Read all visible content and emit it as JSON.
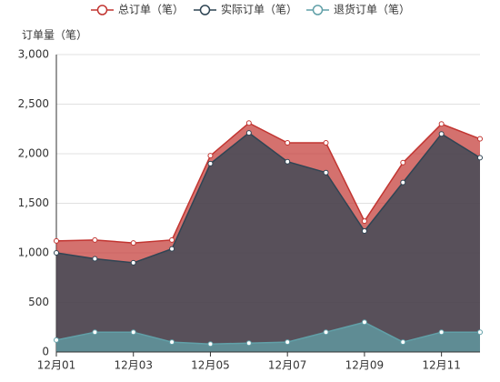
{
  "chart_data": {
    "type": "area",
    "y_axis_label": "订单量（笔）",
    "categories": [
      "12月01",
      null,
      "12月03",
      null,
      "12月05",
      null,
      "12月07",
      null,
      "12月09",
      null,
      "12月11",
      null
    ],
    "series": [
      {
        "name": "总订单（笔）",
        "color": "#c23531",
        "values": [
          1120,
          1130,
          1100,
          1130,
          1980,
          2310,
          2110,
          2110,
          1320,
          1910,
          2300,
          2150
        ]
      },
      {
        "name": "实际订单（笔）",
        "color": "#2f4554",
        "values": [
          1000,
          940,
          900,
          1040,
          1900,
          2210,
          1920,
          1810,
          1220,
          1710,
          2200,
          1960
        ]
      },
      {
        "name": "退货订单（笔）",
        "color": "#61a0a8",
        "values": [
          120,
          200,
          200,
          100,
          80,
          90,
          100,
          200,
          300,
          100,
          200,
          200
        ]
      }
    ],
    "ylim": [
      0,
      3000
    ],
    "yticks": [
      0,
      {
        "value": 500,
        "label": "500"
      },
      {
        "value": 1000,
        "label": "1,000"
      },
      {
        "value": 1500,
        "label": "1,500"
      },
      {
        "value": 2000,
        "label": "2,000"
      },
      {
        "value": 2500,
        "label": "2,500"
      },
      {
        "value": 3000,
        "label": "3,000"
      }
    ],
    "grid": true
  }
}
